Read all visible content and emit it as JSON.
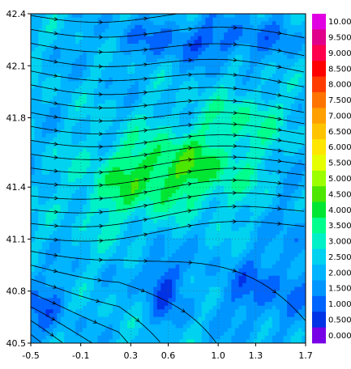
{
  "chart_data": {
    "type": "heatmap",
    "title": "",
    "xlabel": "",
    "ylabel": "",
    "xlim": [
      -0.5,
      1.7
    ],
    "ylim": [
      40.5,
      42.4
    ],
    "x_ticks": [
      "-0.5",
      "-0.1",
      "0.3",
      "0.6",
      "1.0",
      "1.3",
      "1.7"
    ],
    "x_tick_values": [
      -0.5,
      -0.1,
      0.3,
      0.6,
      1.0,
      1.3,
      1.7
    ],
    "y_ticks": [
      "42.4",
      "42.1",
      "41.8",
      "41.4",
      "41.1",
      "40.8",
      "40.5"
    ],
    "y_tick_values": [
      42.4,
      42.1,
      41.8,
      41.4,
      41.1,
      40.8,
      40.5
    ],
    "grid": true,
    "overlay": "streamlines",
    "colorbar": {
      "labels": [
        "10.00",
        "9.500",
        "9.000",
        "8.500",
        "8.000",
        "7.500",
        "7.000",
        "6.500",
        "6.000",
        "5.500",
        "5.000",
        "4.500",
        "4.000",
        "3.500",
        "3.000",
        "2.500",
        "2.000",
        "1.500",
        "1.000",
        "0.500",
        "0.000"
      ],
      "colors": [
        "#e100e1",
        "#e1008a",
        "#ff004c",
        "#ff0000",
        "#ff3b00",
        "#ff7300",
        "#ff9f00",
        "#ffc400",
        "#ffe600",
        "#e6ff00",
        "#9cff00",
        "#4ce600",
        "#00e632",
        "#00ff8c",
        "#00f0c8",
        "#00d2f0",
        "#00b4ff",
        "#0096ff",
        "#0064ff",
        "#0032e6",
        "#7800e6"
      ]
    },
    "approx_max_value_region": "4.0-4.5 near (0.7, 41.5)",
    "approx_min_value_region": "0.0-0.5 near (0.55, 40.9) and edges of domain"
  }
}
